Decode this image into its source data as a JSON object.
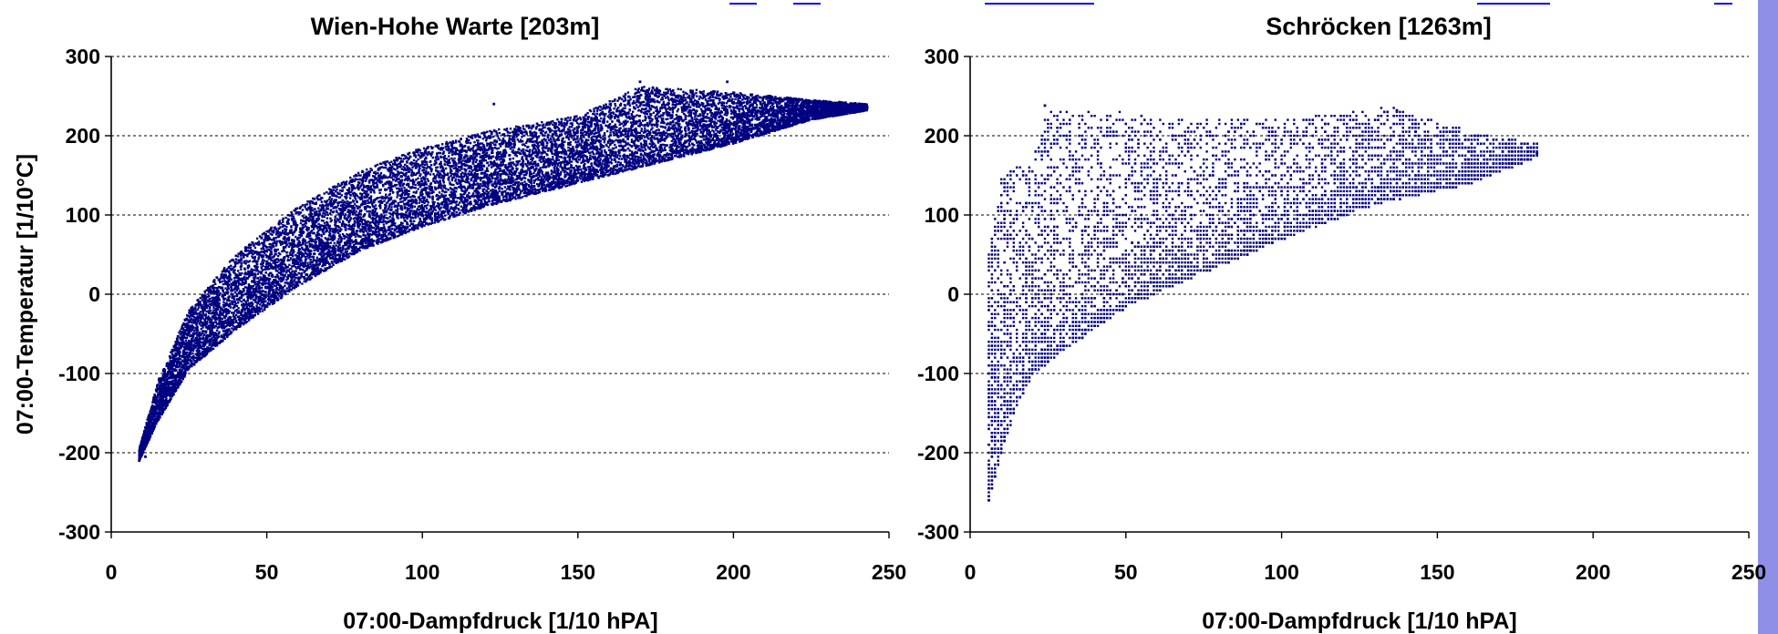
{
  "chart_data": [
    {
      "type": "scatter",
      "title": "Wien-Hohe Warte [203m]",
      "xlabel": "07:00-Dampfdruck [1/10 hPA]",
      "ylabel": "07:00-Temperatur [1/10°C]",
      "xlim": [
        0,
        250
      ],
      "ylim": [
        -300,
        300
      ],
      "xticks": [
        "0",
        "50",
        "100",
        "150",
        "200",
        "250"
      ],
      "yticks": [
        "300",
        "200",
        "100",
        "0",
        "-100",
        "-200",
        "-300"
      ],
      "grid": "horizontal dashed",
      "marker_color": "#000080",
      "point_count_estimate": 14000,
      "envelope": {
        "lower_bound": [
          [
            9,
            -210
          ],
          [
            15,
            -160
          ],
          [
            25,
            -95
          ],
          [
            40,
            -45
          ],
          [
            60,
            10
          ],
          [
            80,
            55
          ],
          [
            100,
            85
          ],
          [
            120,
            110
          ],
          [
            150,
            140
          ],
          [
            180,
            170
          ],
          [
            200,
            190
          ],
          [
            225,
            220
          ],
          [
            243,
            232
          ]
        ],
        "upper_bound": [
          [
            9,
            -195
          ],
          [
            15,
            -110
          ],
          [
            25,
            -20
          ],
          [
            40,
            50
          ],
          [
            60,
            110
          ],
          [
            80,
            155
          ],
          [
            100,
            185
          ],
          [
            120,
            205
          ],
          [
            150,
            225
          ],
          [
            170,
            262
          ],
          [
            200,
            255
          ],
          [
            225,
            245
          ],
          [
            243,
            240
          ]
        ]
      },
      "notable_points": [
        [
          9,
          -210
        ],
        [
          11,
          -205
        ],
        [
          123,
          240
        ],
        [
          170,
          268
        ],
        [
          198,
          268
        ],
        [
          243,
          236
        ]
      ]
    },
    {
      "type": "scatter",
      "title": "Schröcken [1263m]",
      "xlabel": "07:00-Dampfdruck [1/10 hPA]",
      "ylabel": "",
      "xlim": [
        0,
        250
      ],
      "ylim": [
        -300,
        300
      ],
      "xticks": [
        "0",
        "50",
        "100",
        "150",
        "200",
        "250"
      ],
      "yticks": [
        "300",
        "200",
        "100",
        "0",
        "-100",
        "-200",
        "-300"
      ],
      "grid": "horizontal dashed",
      "marker_color": "#000080",
      "point_count_estimate": 6000,
      "envelope": {
        "lower_bound": [
          [
            6,
            -260
          ],
          [
            10,
            -200
          ],
          [
            15,
            -140
          ],
          [
            20,
            -100
          ],
          [
            30,
            -70
          ],
          [
            50,
            -15
          ],
          [
            70,
            20
          ],
          [
            100,
            70
          ],
          [
            130,
            115
          ],
          [
            160,
            140
          ],
          [
            182,
            175
          ]
        ],
        "upper_bound": [
          [
            6,
            50
          ],
          [
            10,
            150
          ],
          [
            20,
            170
          ],
          [
            25,
            235
          ],
          [
            45,
            230
          ],
          [
            60,
            222
          ],
          [
            100,
            220
          ],
          [
            135,
            235
          ],
          [
            160,
            205
          ],
          [
            182,
            190
          ]
        ]
      },
      "notable_points": [
        [
          6,
          -260
        ],
        [
          8,
          -230
        ],
        [
          24,
          238
        ],
        [
          137,
          232
        ],
        [
          182,
          178
        ]
      ]
    }
  ]
}
